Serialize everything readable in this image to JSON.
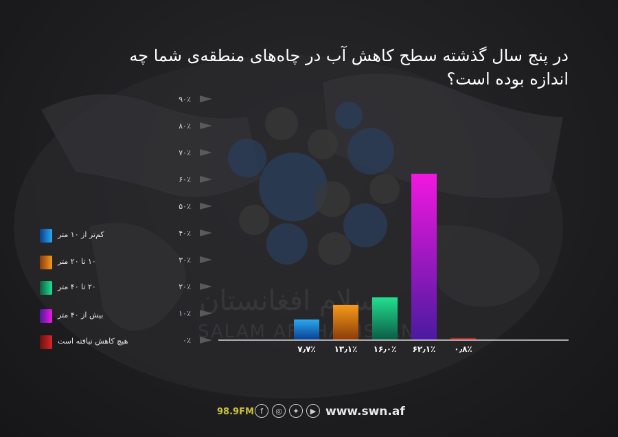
{
  "title": "در پنج سال گذشته سطح کاهش آب در چاه‌های منطقه‌ی شما چه اندازه بوده است؟",
  "watermark": {
    "fa": "سلام افغانستان",
    "en": "SALAM AFGHANISTAN"
  },
  "footer": {
    "radio": "98.9FM",
    "site": "www.swn.af",
    "icons": [
      "facebook-icon",
      "instagram-icon",
      "twitter-icon",
      "youtube-icon"
    ]
  },
  "chart_data": {
    "type": "bar",
    "title": "در پنج سال گذشته سطح کاهش آب در چاه‌های منطقه‌ی شما چه اندازه بوده است؟",
    "categories": [
      "کم‌تر از ۱۰ متر",
      "۱۰ تا ۲۰ متر",
      "۲۰ تا ۴۰ متر",
      "بیش از ۴۰ متر",
      "هیچ کاهش نیافته است"
    ],
    "values": [
      7.7,
      13.1,
      16.0,
      62.1,
      0.8
    ],
    "value_labels": [
      "۷٫۷٪",
      "۱۳٫۱٪",
      "۱۶٫۰٪",
      "۶۲٫۱٪",
      "۰٫۸٪"
    ],
    "colors": [
      [
        "#29a9f0",
        "#0b3d8f"
      ],
      [
        "#f59a1c",
        "#8a3a08"
      ],
      [
        "#22e08f",
        "#0c5a45"
      ],
      [
        "#f217e0",
        "#4a1aa0"
      ],
      [
        "#d8262a",
        "#6a1010"
      ]
    ],
    "ylim": [
      0,
      90
    ],
    "y_ticks": [
      0,
      10,
      20,
      30,
      40,
      50,
      60,
      70,
      80,
      90
    ],
    "y_tick_labels": [
      "۰٪",
      "۱۰٪",
      "۲۰٪",
      "۳۰٪",
      "۴۰٪",
      "۵۰٪",
      "۶۰٪",
      "۷۰٪",
      "۸۰٪",
      "۹۰٪"
    ],
    "legend_position": "left",
    "grid": false
  }
}
